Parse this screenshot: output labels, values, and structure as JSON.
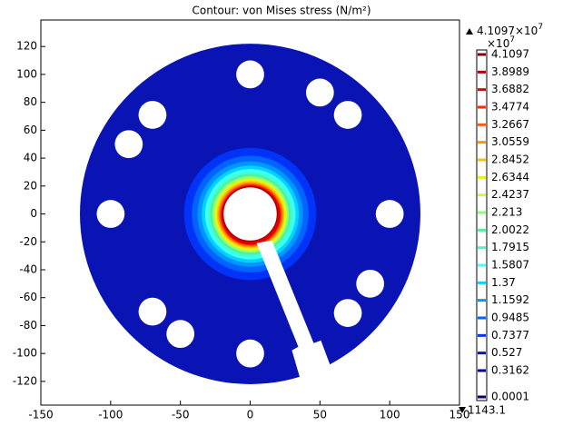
{
  "chart_data": {
    "type": "contour",
    "title": "Contour: von Mises stress (N/m²)",
    "xlim": [
      -150,
      150
    ],
    "xticks": [
      -150,
      -100,
      -50,
      0,
      50,
      100,
      150
    ],
    "ylim": [
      -137,
      139
    ],
    "yticks": [
      -120,
      -100,
      -80,
      -60,
      -40,
      -20,
      0,
      20,
      40,
      60,
      80,
      100,
      120
    ],
    "max_label": "4.1097×10",
    "max_exponent": "7",
    "colorbar_multiplier": "×10",
    "colorbar_exponent": "7",
    "min_label": "1143.1",
    "levels": [
      4.1097,
      3.8989,
      3.6882,
      3.4774,
      3.2667,
      3.0559,
      2.8452,
      2.6344,
      2.4237,
      2.213,
      2.0022,
      1.7915,
      1.5807,
      1.37,
      1.1592,
      0.9485,
      0.7377,
      0.527,
      0.3162,
      0.0001
    ],
    "level_colors": [
      "#800000",
      "#b00000",
      "#e00000",
      "#ff2a00",
      "#ff5f00",
      "#ff9400",
      "#ffc400",
      "#f2f000",
      "#c8ff3c",
      "#8cff72",
      "#50f0a0",
      "#40ffc8",
      "#40ffff",
      "#00d4ff",
      "#0096ff",
      "#0064ff",
      "#0032f8",
      "#0a14b4",
      "#000096",
      "#00006e"
    ],
    "disk_radius": 122,
    "center_hole_radius": 19.5,
    "hole_radius": 10,
    "holes": [
      {
        "x": 0,
        "y": 100
      },
      {
        "x": 50,
        "y": 87
      },
      {
        "x": 70,
        "y": 71
      },
      {
        "x": 100,
        "y": 0
      },
      {
        "x": 86,
        "y": -50
      },
      {
        "x": 70,
        "y": -71
      },
      {
        "x": 0,
        "y": -100
      },
      {
        "x": -50,
        "y": -86
      },
      {
        "x": -70,
        "y": -70
      },
      {
        "x": -100,
        "y": 0
      },
      {
        "x": -87,
        "y": 50
      },
      {
        "x": -70,
        "y": 71
      }
    ],
    "slot_x": [
      4.6,
      15.6,
      45.5,
      50.7,
      57.3,
      36.4,
      29.9,
      34.5
    ],
    "slot_y": [
      -20.9,
      -18.9,
      -92.6,
      -90.7,
      -108.3,
      -120,
      -97.8,
      -95.2
    ]
  }
}
